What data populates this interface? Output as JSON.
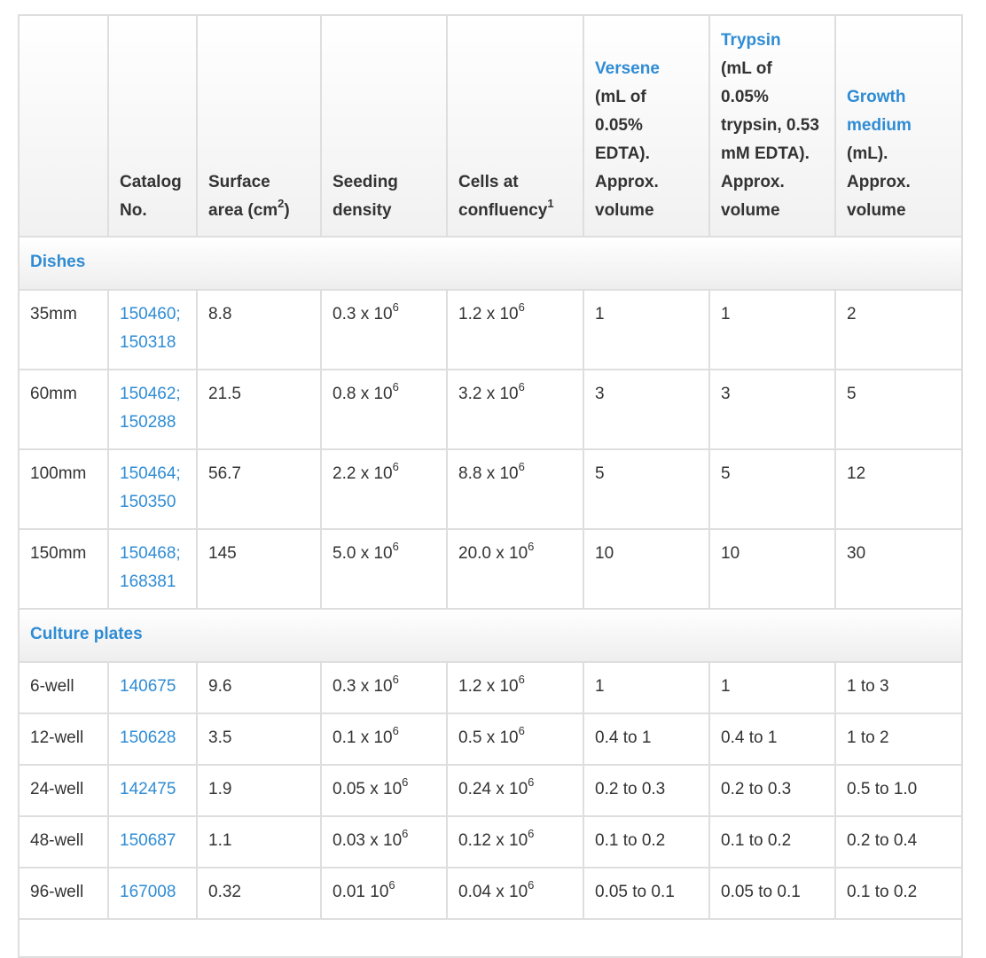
{
  "headers": {
    "catalog": [
      "Catalog",
      "No."
    ],
    "surface": {
      "line1": "Surface",
      "line2": "area (cm",
      "sup": "2",
      "tail": ")"
    },
    "seeding": [
      "Seeding",
      "density"
    ],
    "cells": {
      "line1": "Cells at",
      "line2": "confluency",
      "sup": "1"
    },
    "versene": {
      "link": "Versene",
      "text": [
        "(mL of",
        "0.05%",
        "EDTA).",
        "Approx.",
        "volume"
      ]
    },
    "trypsin": {
      "link": "Trypsin",
      "text": [
        "(mL of",
        "0.05%",
        "trypsin, 0.53",
        "mM EDTA).",
        "Approx.",
        "volume"
      ]
    },
    "growth": {
      "link": [
        "Growth",
        "medium"
      ],
      "text": [
        "(mL).",
        "Approx.",
        "volume"
      ]
    }
  },
  "exp_sup": "6",
  "sections": [
    {
      "title": "Dishes",
      "rows": [
        {
          "name": "35mm",
          "catalog": [
            "150460;",
            "150318"
          ],
          "surface": "8.8",
          "seeding": "0.3 x 10",
          "cells": "1.2 x 10",
          "versene": "1",
          "trypsin": "1",
          "growth": "2"
        },
        {
          "name": "60mm",
          "catalog": [
            "150462;",
            "150288"
          ],
          "surface": "21.5",
          "seeding": "0.8 x 10",
          "cells": "3.2 x 10",
          "versene": "3",
          "trypsin": "3",
          "growth": "5"
        },
        {
          "name": "100mm",
          "catalog": [
            "150464;",
            "150350"
          ],
          "surface": "56.7",
          "seeding": "2.2 x 10",
          "cells": "8.8 x 10",
          "versene": "5",
          "trypsin": "5",
          "growth": "12"
        },
        {
          "name": "150mm",
          "catalog": [
            "150468;",
            "168381"
          ],
          "surface": "145",
          "seeding": "5.0 x 10",
          "cells": "20.0 x 10",
          "versene": "10",
          "trypsin": "10",
          "growth": "30"
        }
      ]
    },
    {
      "title": "Culture plates",
      "rows": [
        {
          "name": "6-well",
          "catalog": [
            "140675"
          ],
          "surface": "9.6",
          "seeding": "0.3 x 10",
          "cells": "1.2 x 10",
          "versene": "1",
          "trypsin": "1",
          "growth": "1 to 3"
        },
        {
          "name": "12-well",
          "catalog": [
            "150628"
          ],
          "surface": "3.5",
          "seeding": "0.1 x 10",
          "cells": "0.5 x 10",
          "versene": "0.4 to 1",
          "trypsin": "0.4 to 1",
          "growth": "1 to 2"
        },
        {
          "name": "24-well",
          "catalog": [
            "142475"
          ],
          "surface": "1.9",
          "seeding": "0.05 x 10",
          "cells": "0.24 x 10",
          "versene": "0.2 to 0.3",
          "trypsin": "0.2 to 0.3",
          "growth": "0.5 to 1.0"
        },
        {
          "name": "48-well",
          "catalog": [
            "150687"
          ],
          "surface": "1.1",
          "seeding": "0.03 x 10",
          "cells": "0.12 x 10",
          "versene": "0.1 to 0.2",
          "trypsin": "0.1 to 0.2",
          "growth": "0.2 to 0.4"
        },
        {
          "name": "96-well",
          "catalog": [
            "167008"
          ],
          "surface": "0.32",
          "seeding": "0.01 10",
          "cells": "0.04 x 10",
          "versene": "0.05 to 0.1",
          "trypsin": "0.05 to 0.1",
          "growth": "0.1 to 0.2"
        }
      ]
    }
  ]
}
